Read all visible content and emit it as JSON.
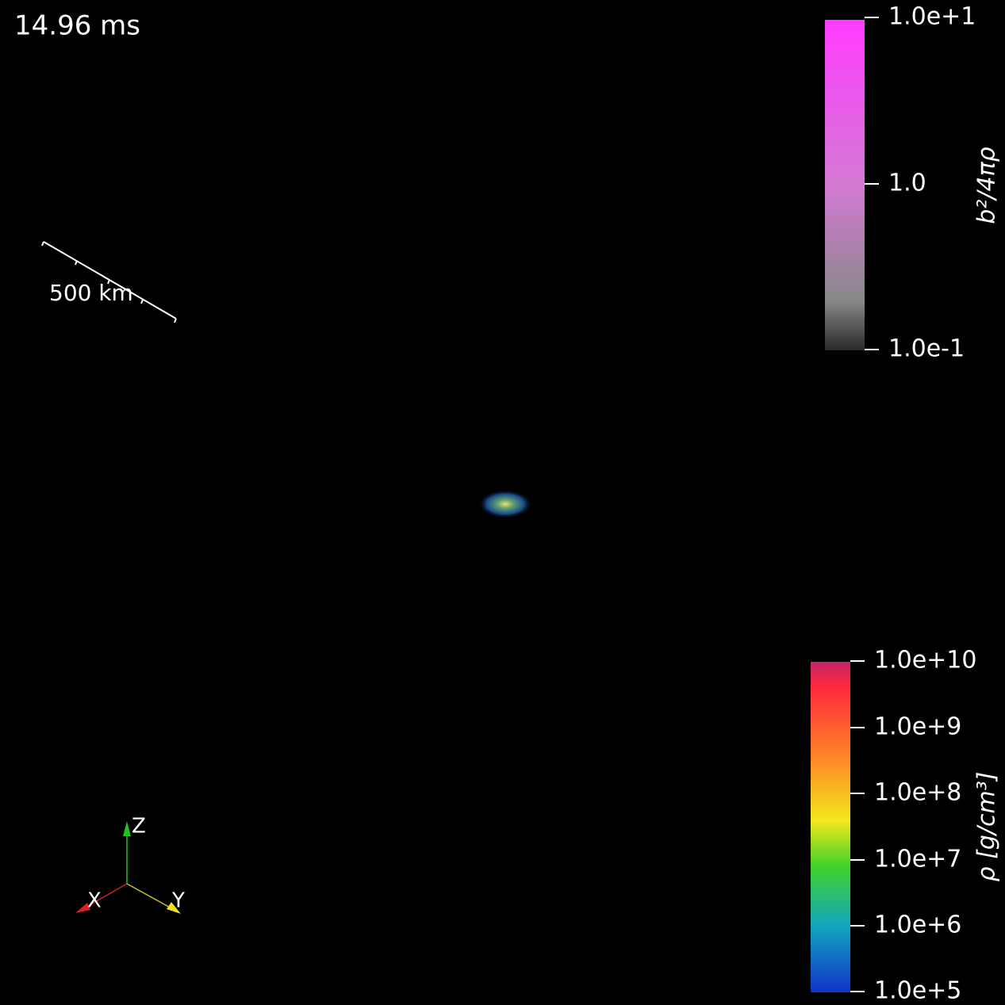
{
  "time_label": "14.96 ms",
  "scale_bar": {
    "label": "500 km"
  },
  "colorbars": [
    {
      "title": "b²/4πρ",
      "ticks": [
        "1.0e+1",
        "1.0",
        "1.0e-1"
      ]
    },
    {
      "title": "ρ [g/cm³]",
      "ticks": [
        "1.0e+10",
        "1.0e+9",
        "1.0e+8",
        "1.0e+7",
        "1.0e+6",
        "1.0e+5"
      ]
    }
  ],
  "axes": {
    "z": "Z",
    "x": "X",
    "y": "Y"
  }
}
